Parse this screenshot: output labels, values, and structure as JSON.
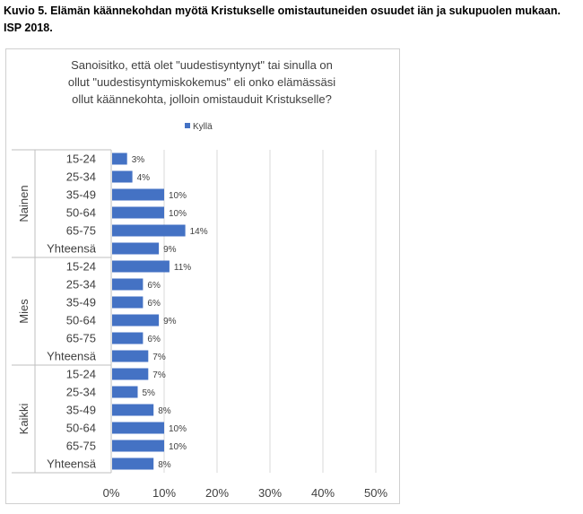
{
  "caption": {
    "line1": "Kuvio 5. Elämän käännekohdan myötä Kristukselle omistautuneiden osuudet iän ja sukupuolen mukaan.",
    "line2": "ISP 2018."
  },
  "chart_data": {
    "type": "bar",
    "orientation": "horizontal",
    "title_lines": [
      "Sanoisitko, että olet \"uudestisyntynyt\" tai sinulla on",
      "ollut \"uudestisyntymiskokemus\" eli onko elämässäsi",
      "ollut käännekohta, jolloin omistauduit Kristukselle?"
    ],
    "legend": {
      "position": "top",
      "entries": [
        "Kyllä"
      ]
    },
    "series": [
      {
        "name": "Kyllä",
        "color": "#4472c4"
      }
    ],
    "groups": [
      {
        "name": "Nainen",
        "categories": [
          "15-24",
          "25-34",
          "35-49",
          "50-64",
          "65-75",
          "Yhteensä"
        ],
        "values": [
          3,
          4,
          10,
          10,
          14,
          9
        ],
        "labels": [
          "3%",
          "4%",
          "10%",
          "10%",
          "14%",
          "9%"
        ]
      },
      {
        "name": "Mies",
        "categories": [
          "15-24",
          "25-34",
          "35-49",
          "50-64",
          "65-75",
          "Yhteensä"
        ],
        "values": [
          11,
          6,
          6,
          9,
          6,
          7
        ],
        "labels": [
          "11%",
          "6%",
          "6%",
          "9%",
          "6%",
          "7%"
        ]
      },
      {
        "name": "Kaikki",
        "categories": [
          "15-24",
          "25-34",
          "35-49",
          "50-64",
          "65-75",
          "Yhteensä"
        ],
        "values": [
          7,
          5,
          8,
          10,
          10,
          8
        ],
        "labels": [
          "7%",
          "5%",
          "8%",
          "10%",
          "10%",
          "8%"
        ]
      }
    ],
    "x_axis": {
      "range": [
        0,
        50
      ],
      "ticks": [
        0,
        10,
        20,
        30,
        40,
        50
      ],
      "tick_labels": [
        "0%",
        "10%",
        "20%",
        "30%",
        "40%",
        "50%"
      ]
    },
    "grid": true,
    "colors": {
      "bar": "#4472c4",
      "grid": "#d9d9d9",
      "text": "#404040",
      "label": "#404040"
    }
  }
}
